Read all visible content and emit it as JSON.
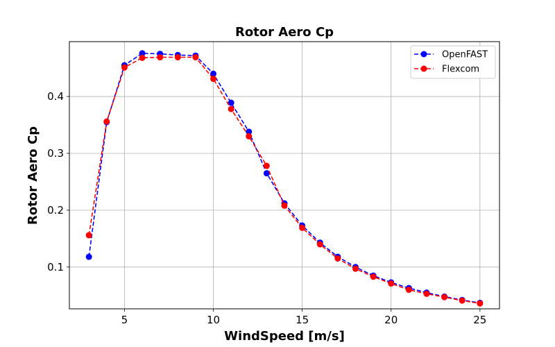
{
  "chart_data": {
    "type": "line",
    "title": "Rotor Aero Cp",
    "xlabel": "WindSpeed [m/s]",
    "ylabel": "Rotor Aero Cp",
    "xlim": [
      1.9,
      26.1
    ],
    "ylim": [
      0.0265,
      0.4965
    ],
    "xticks": [
      5,
      10,
      15,
      20,
      25
    ],
    "xtick_labels": [
      "5",
      "10",
      "15",
      "20",
      "25"
    ],
    "yticks": [
      0.1,
      0.2,
      0.3,
      0.4
    ],
    "ytick_labels": [
      "0.1",
      "0.2",
      "0.3",
      "0.4"
    ],
    "grid": true,
    "legend_position": "top-right",
    "x": [
      3,
      4,
      5,
      6,
      7,
      8,
      9,
      10,
      11,
      12,
      13,
      14,
      15,
      16,
      17,
      18,
      19,
      20,
      21,
      22,
      23,
      24,
      25
    ],
    "series": [
      {
        "name": "OpenFAST",
        "color": "#0000ff",
        "values": [
          0.118,
          0.355,
          0.455,
          0.476,
          0.475,
          0.473,
          0.472,
          0.44,
          0.389,
          0.338,
          0.265,
          0.212,
          0.173,
          0.143,
          0.118,
          0.1,
          0.085,
          0.073,
          0.063,
          0.055,
          0.048,
          0.042,
          0.037
        ]
      },
      {
        "name": "Flexcom",
        "color": "#ff0000",
        "values": [
          0.156,
          0.356,
          0.451,
          0.468,
          0.469,
          0.469,
          0.469,
          0.431,
          0.378,
          0.33,
          0.278,
          0.208,
          0.169,
          0.14,
          0.115,
          0.097,
          0.083,
          0.071,
          0.06,
          0.053,
          0.047,
          0.041,
          0.036
        ]
      }
    ]
  }
}
